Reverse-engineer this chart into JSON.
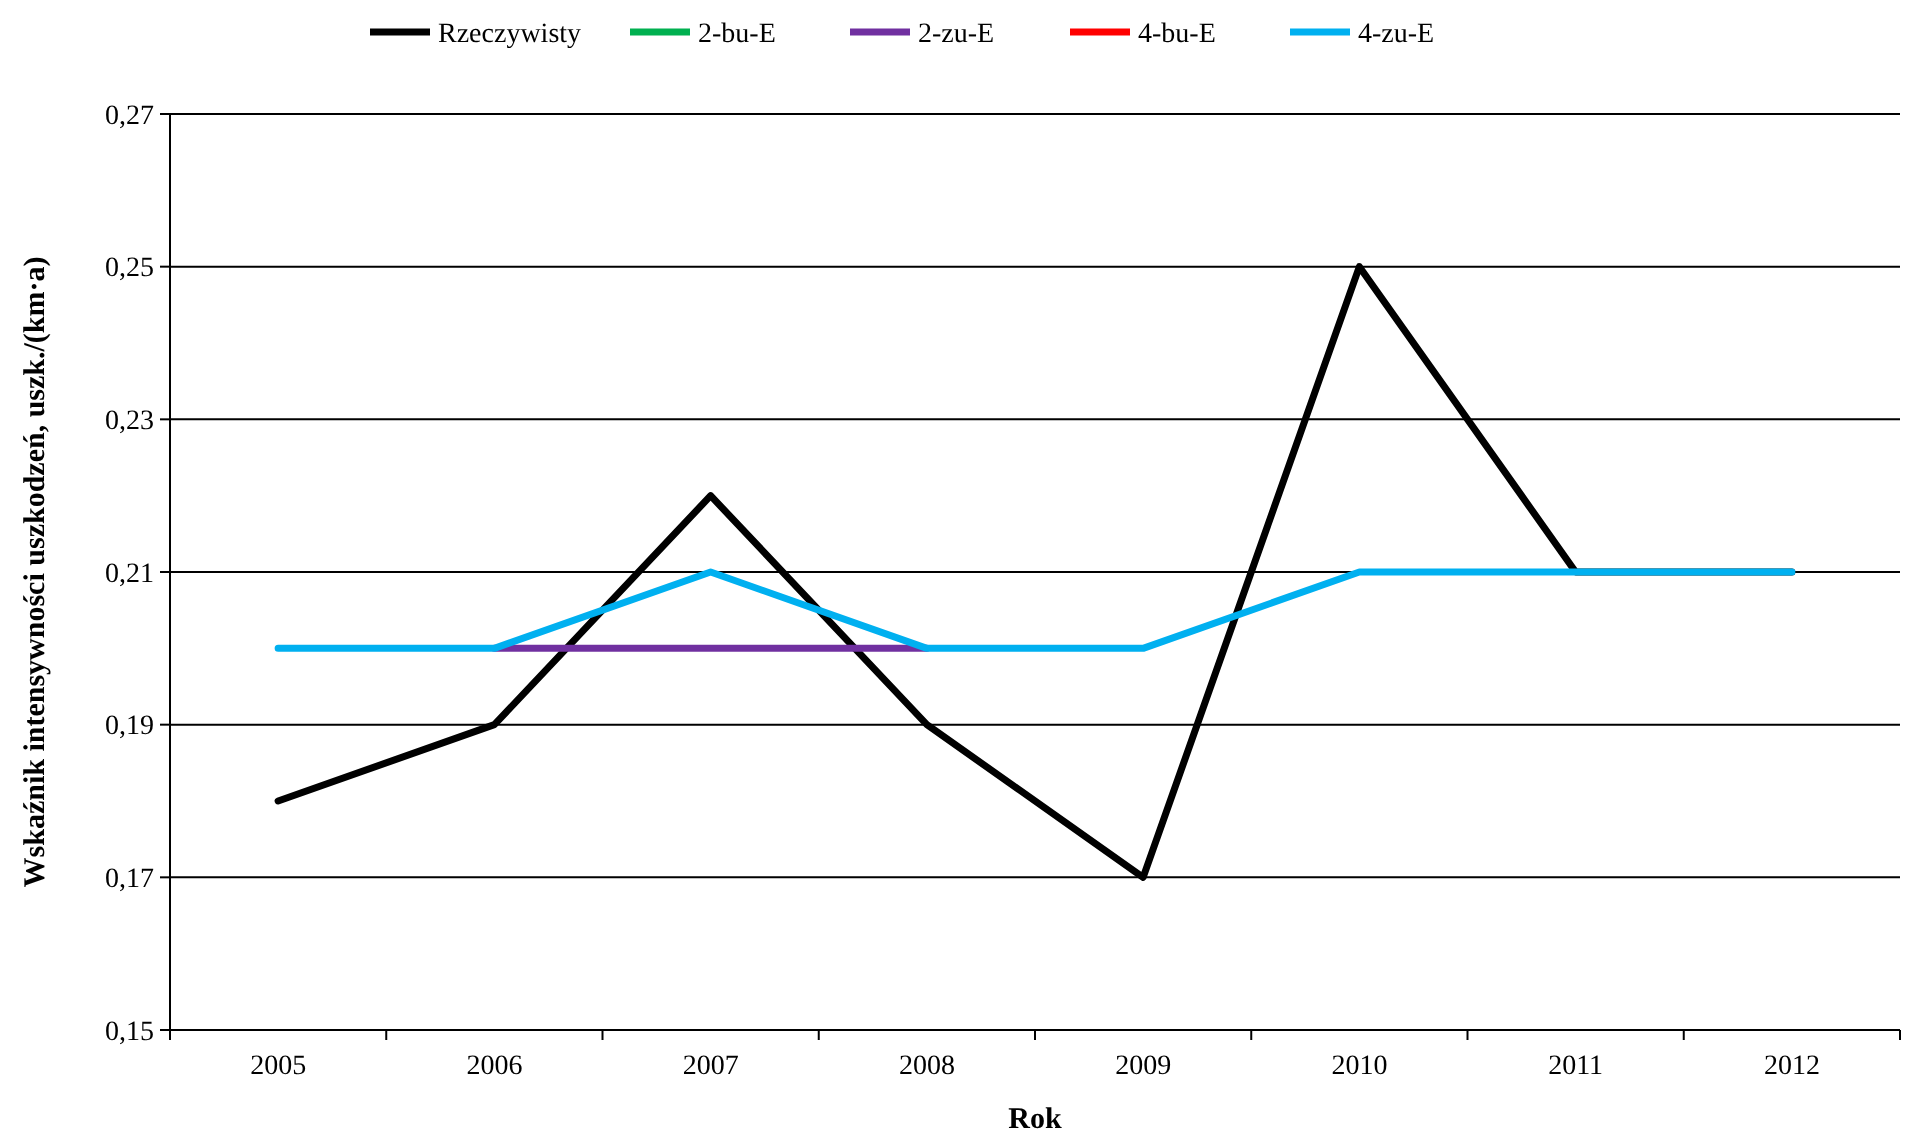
{
  "chart_data": {
    "type": "line",
    "xlabel": "Rok",
    "ylabel": "Wskaźnik intensywności uszkodzeń, uszk./(km·a)",
    "categories": [
      "2005",
      "2006",
      "2007",
      "2008",
      "2009",
      "2010",
      "2011",
      "2012"
    ],
    "series": [
      {
        "name": "Rzeczywisty",
        "color": "#000000",
        "values": [
          0.18,
          0.19,
          0.22,
          0.19,
          0.17,
          0.25,
          0.21,
          0.21
        ]
      },
      {
        "name": "2-bu-E",
        "color": "#00b050",
        "values": [
          null,
          null,
          null,
          null,
          null,
          null,
          null,
          null
        ]
      },
      {
        "name": "2-zu-E",
        "color": "#7030a0",
        "values": [
          null,
          0.2,
          0.2,
          0.2,
          null,
          null,
          null,
          null
        ]
      },
      {
        "name": "4-bu-E",
        "color": "#ff0000",
        "values": [
          null,
          null,
          null,
          null,
          null,
          null,
          null,
          null
        ]
      },
      {
        "name": "4-zu-E",
        "color": "#00b0f0",
        "values": [
          0.2,
          0.2,
          0.21,
          0.2,
          0.2,
          0.21,
          0.21,
          0.21
        ]
      }
    ],
    "ylim": [
      0.15,
      0.27
    ],
    "yticks": [
      {
        "value": 0.15,
        "label": "0,15"
      },
      {
        "value": 0.17,
        "label": "0,17"
      },
      {
        "value": 0.19,
        "label": "0,19"
      },
      {
        "value": 0.21,
        "label": "0,21"
      },
      {
        "value": 0.23,
        "label": "0,23"
      },
      {
        "value": 0.25,
        "label": "0,25"
      },
      {
        "value": 0.27,
        "label": "0,27"
      }
    ],
    "grid": "y",
    "legend": "top",
    "marker": "none",
    "line_style": "solid"
  }
}
